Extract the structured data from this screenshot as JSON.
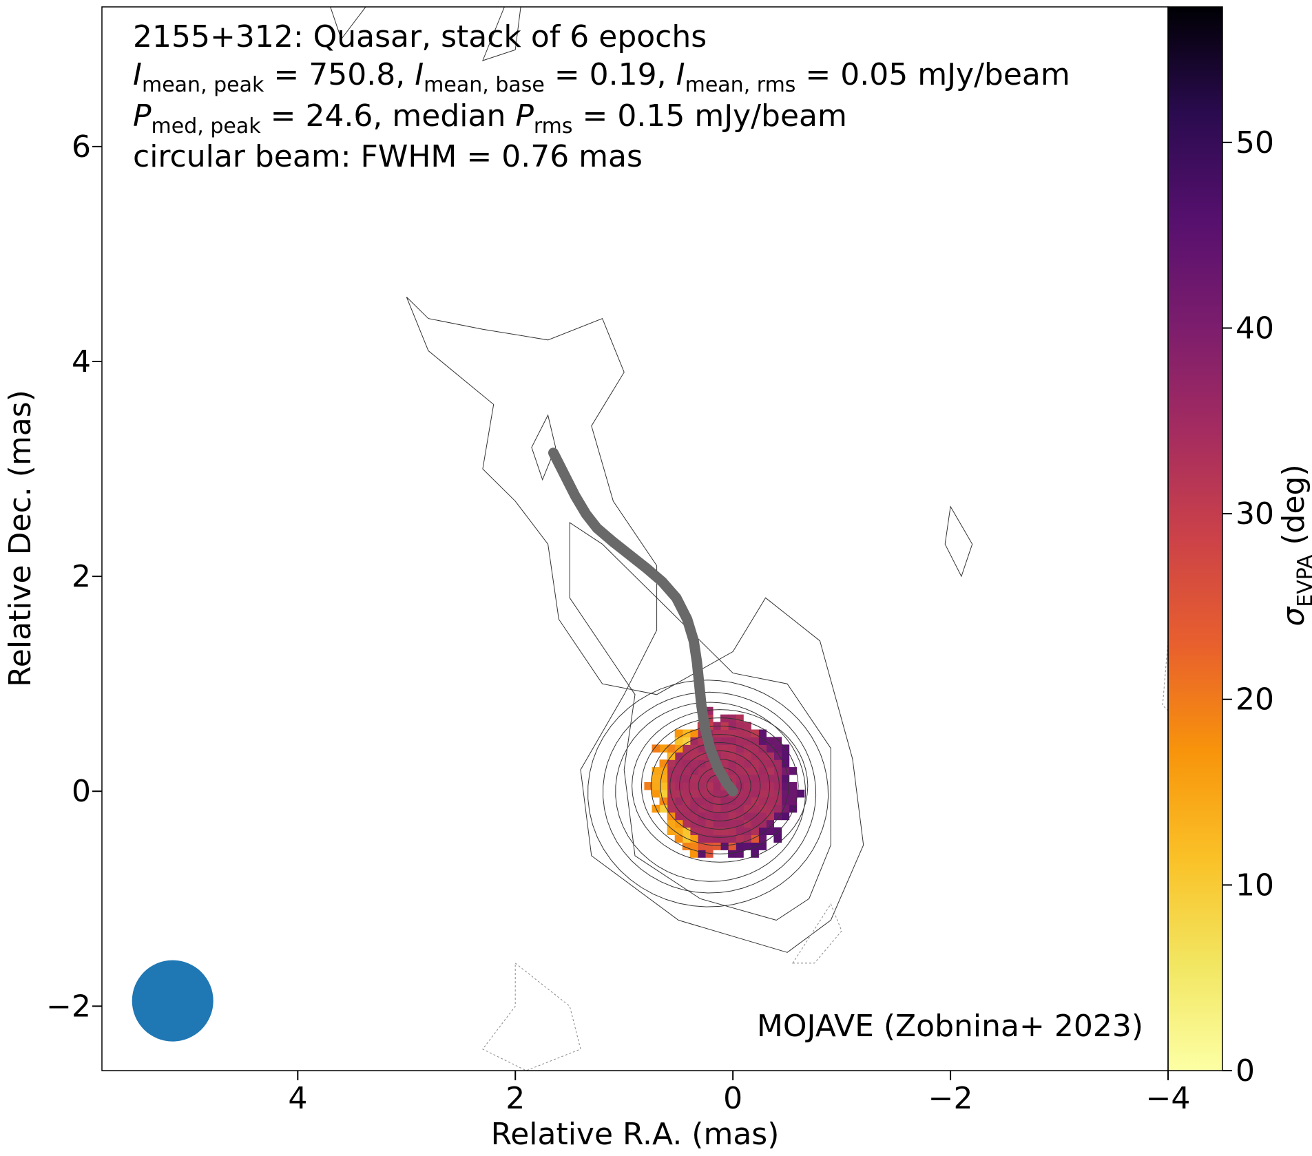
{
  "chart_data": {
    "type": "heatmap",
    "source": "2155+312",
    "title_lines": {
      "line1": "2155+312: Quasar, stack of 6 epochs",
      "line2": {
        "i_peak_sub": "mean, peak",
        "i_peak_val": " = 750.8, ",
        "i_base_sub": "mean, base",
        "i_base_val": " = 0.19, ",
        "i_rms_sub": "mean, rms",
        "i_rms_val": " = 0.05 mJy/beam"
      },
      "line3": {
        "p_peak_sub": "med, peak",
        "p_peak_val": " = 24.6, median ",
        "p_rms_sub": "rms",
        "p_rms_val": " = 0.15 mJy/beam"
      },
      "line4": "circular beam: FWHM = 0.76 mas"
    },
    "stats": {
      "i_mean_peak_mJy_per_beam": 750.8,
      "i_mean_base_mJy_per_beam": 0.19,
      "i_mean_rms_mJy_per_beam": 0.05,
      "p_med_peak_mJy_per_beam": 24.6,
      "p_median_rms_mJy_per_beam": 0.15,
      "beam_fwhm_mas": 0.76,
      "epochs": 6
    },
    "xlabel": "Relative R.A. (mas)",
    "ylabel": "Relative Dec. (mas)",
    "xlim": [
      5.8,
      -4.0
    ],
    "ylim": [
      -2.6,
      7.3
    ],
    "xticks": [
      {
        "value": 4,
        "label": "4"
      },
      {
        "value": 2,
        "label": "2"
      },
      {
        "value": 0,
        "label": "0"
      },
      {
        "value": -2,
        "label": "−2"
      },
      {
        "value": -4,
        "label": "−4"
      }
    ],
    "yticks": [
      {
        "value": -2,
        "label": "−2"
      },
      {
        "value": 0,
        "label": "0"
      },
      {
        "value": 2,
        "label": "2"
      },
      {
        "value": 4,
        "label": "4"
      },
      {
        "value": 6,
        "label": "6"
      }
    ],
    "colorbar": {
      "label_prefix": "σ",
      "label_sub": "EVPA",
      "label_suffix": " (deg)",
      "range": [
        0,
        57.3
      ],
      "cmap": "inferno_r",
      "ticks": [
        {
          "value": 0,
          "label": "0"
        },
        {
          "value": 10,
          "label": "10"
        },
        {
          "value": 20,
          "label": "20"
        },
        {
          "value": 30,
          "label": "30"
        },
        {
          "value": 40,
          "label": "40"
        },
        {
          "value": 50,
          "label": "50"
        }
      ]
    },
    "credit": "MOJAVE (Zobnina+ 2023)",
    "beam_center": [
      5.15,
      -1.95
    ],
    "beam_color": "#1f77b4",
    "ridgeline_color": "#696969",
    "ridgeline": [
      [
        1.65,
        3.15
      ],
      [
        1.55,
        2.95
      ],
      [
        1.45,
        2.75
      ],
      [
        1.35,
        2.58
      ],
      [
        1.25,
        2.45
      ],
      [
        1.1,
        2.32
      ],
      [
        0.95,
        2.2
      ],
      [
        0.8,
        2.08
      ],
      [
        0.65,
        1.95
      ],
      [
        0.52,
        1.8
      ],
      [
        0.42,
        1.6
      ],
      [
        0.36,
        1.4
      ],
      [
        0.33,
        1.2
      ],
      [
        0.31,
        1.0
      ],
      [
        0.29,
        0.8
      ],
      [
        0.26,
        0.6
      ],
      [
        0.21,
        0.4
      ],
      [
        0.14,
        0.22
      ],
      [
        0.06,
        0.08
      ],
      [
        0.0,
        0.0
      ]
    ],
    "contour_levels_note": "base 0.19 mJy/beam, x2 steps",
    "sigma_evpa_map": {
      "center": [
        0.08,
        0.05
      ],
      "core_radius_mas": 0.66,
      "typical_deg": 34,
      "edge_west_deg": 40,
      "edge_east_deg": 8,
      "south_rim_deg": 42
    },
    "pixel_size_mas": 0.07
  }
}
